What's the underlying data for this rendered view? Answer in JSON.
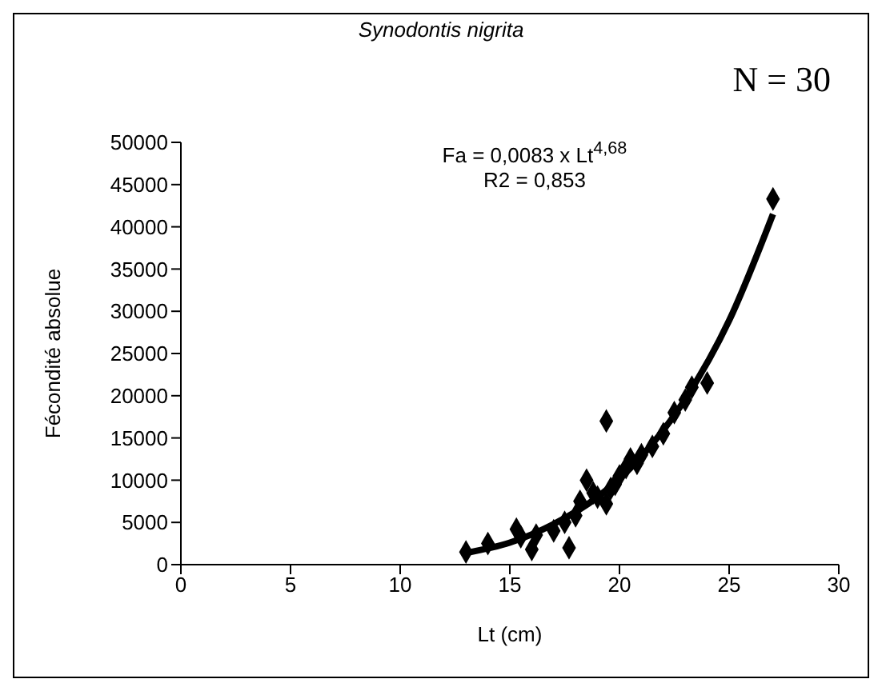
{
  "chart_data": {
    "type": "scatter",
    "title": "Synodontis nigrita",
    "xlabel": "Lt (cm)",
    "ylabel": "Fécondité absolue",
    "xlim": [
      0,
      30
    ],
    "xticks": [
      0,
      5,
      10,
      15,
      20,
      25,
      30
    ],
    "ylim": [
      0,
      50000
    ],
    "yticks": [
      0,
      5000,
      10000,
      15000,
      20000,
      25000,
      30000,
      35000,
      40000,
      45000,
      50000
    ],
    "grid": false,
    "annotations": [
      "Fa = 0,0083 x Lt$^{4,68}$",
      "R2 = 0,853",
      "N = 30"
    ],
    "series": [
      {
        "marker": "diamond",
        "color": "#000000",
        "x": [
          13,
          14,
          15.3,
          15.5,
          16,
          16.2,
          17,
          17.5,
          17.7,
          18,
          18.2,
          18.5,
          18.8,
          19,
          19.4,
          19.4,
          19.6,
          19.8,
          20,
          20.3,
          20.5,
          20.8,
          21,
          21.5,
          22,
          22.5,
          23,
          23.3,
          24,
          27
        ],
        "values": [
          1500,
          2500,
          4200,
          3300,
          1800,
          3500,
          4000,
          5000,
          2000,
          5800,
          7500,
          10000,
          8500,
          8000,
          17000,
          7200,
          9000,
          9500,
          10500,
          11500,
          12500,
          12000,
          13000,
          14000,
          15500,
          18000,
          19500,
          21000,
          21500,
          43300
        ]
      },
      {
        "type": "line",
        "marker": "none",
        "color": "#000000",
        "x": [
          13,
          15,
          17,
          19,
          21,
          23,
          25,
          27
        ],
        "values": [
          1400,
          2600,
          4800,
          8000,
          12800,
          19600,
          28900,
          41500
        ]
      }
    ]
  }
}
